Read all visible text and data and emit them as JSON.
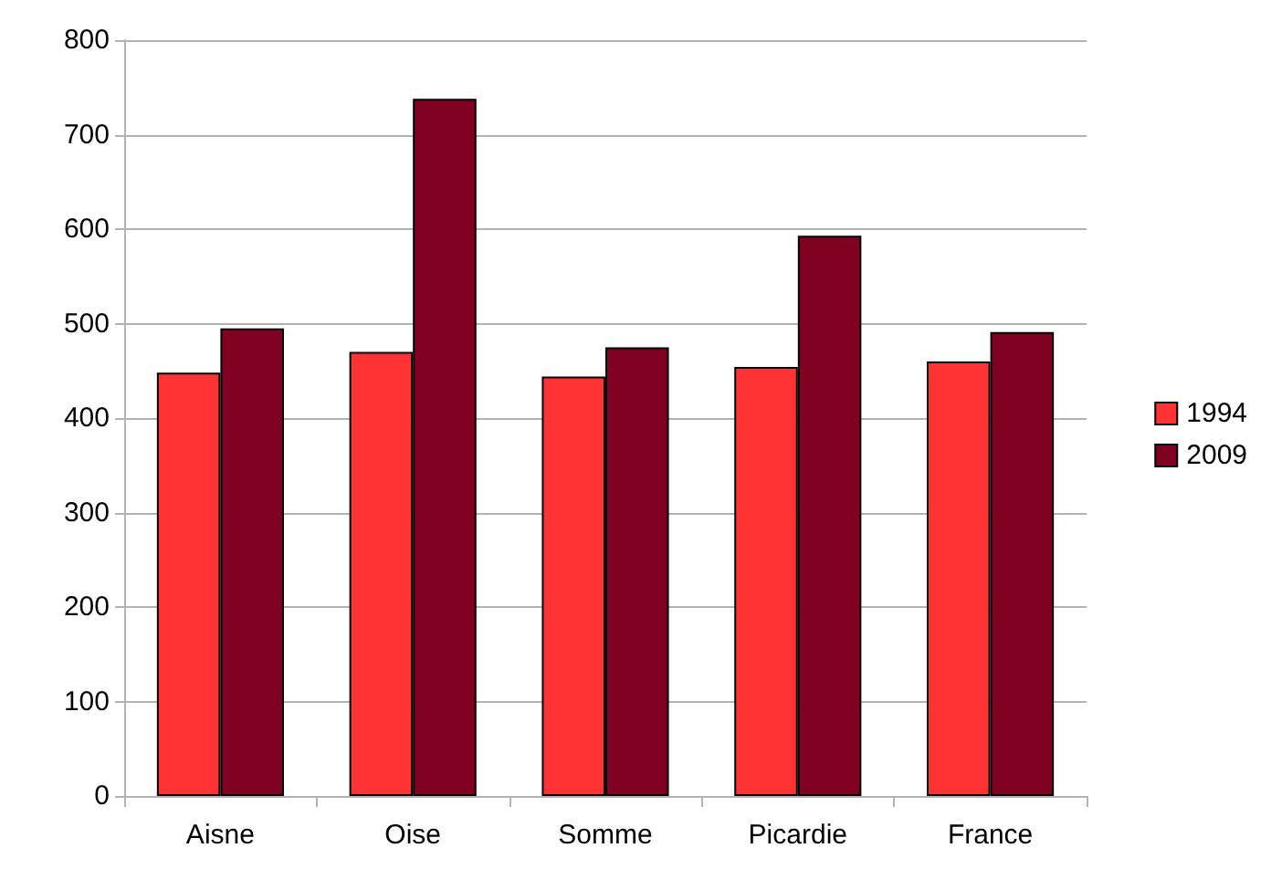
{
  "chart_data": {
    "type": "bar",
    "categories": [
      "Aisne",
      "Oise",
      "Somme",
      "Picardie",
      "France"
    ],
    "series": [
      {
        "name": "1994",
        "color": "#ff3333",
        "values": [
          448,
          470,
          444,
          454,
          460
        ]
      },
      {
        "name": "2009",
        "color": "#7f0021",
        "values": [
          495,
          738,
          475,
          593,
          491
        ]
      }
    ],
    "ylim": [
      0,
      800
    ],
    "yticks": [
      0,
      100,
      200,
      300,
      400,
      500,
      600,
      700,
      800
    ],
    "grid": "y",
    "legend": "right"
  }
}
